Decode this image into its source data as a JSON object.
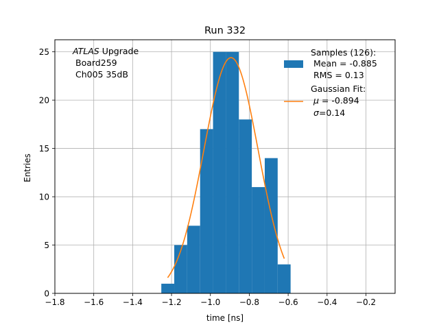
{
  "chart_data": {
    "type": "bar",
    "title": "Run 332",
    "xlabel": "time [ns]",
    "ylabel": "Entries",
    "xlim": [
      -1.8,
      -0.05
    ],
    "ylim": [
      0,
      26.25
    ],
    "xticks": [
      -1.8,
      -1.6,
      -1.4,
      -1.2,
      -1.0,
      -0.8,
      -0.6,
      -0.4,
      -0.2
    ],
    "xtick_labels": [
      "−1.8",
      "−1.6",
      "−1.4",
      "−1.2",
      "−1.0",
      "−0.8",
      "−0.6",
      "−0.4",
      "−0.2"
    ],
    "yticks": [
      0,
      5,
      10,
      15,
      20,
      25
    ],
    "ytick_labels": [
      "0",
      "5",
      "10",
      "15",
      "20",
      "25"
    ],
    "grid": true,
    "annotation": {
      "line1_italic": "ATLAS",
      "line1_rest": " Upgrade",
      "line2": "Board259",
      "line3": "Ch005 35dB"
    },
    "legend": {
      "placement": "top-right",
      "samples": {
        "title": "Samples (126):",
        "mean": "Mean = -0.885",
        "rms": "RMS = 0.13"
      },
      "fit": {
        "title": "Gaussian Fit:",
        "mu_sym": "μ",
        "mu_val": " = -0.894",
        "sigma_sym": "σ",
        "sigma_val": "=0.14"
      }
    },
    "series": [
      {
        "name": "Samples (126)",
        "kind": "histogram",
        "color": "#1f77b4",
        "bin_edges": [
          -1.2525,
          -1.186,
          -1.1195,
          -1.053,
          -0.9865,
          -0.92,
          -0.8535,
          -0.787,
          -0.7205,
          -0.654,
          -0.5875
        ],
        "counts": [
          1,
          5,
          7,
          17,
          25,
          25,
          18,
          11,
          14,
          3
        ]
      },
      {
        "name": "Gaussian Fit",
        "kind": "line",
        "color": "#ff7f0e",
        "mu": -0.894,
        "sigma": 0.14,
        "amplitude": 24.4,
        "x_range": [
          -1.22,
          -0.62
        ]
      }
    ]
  }
}
